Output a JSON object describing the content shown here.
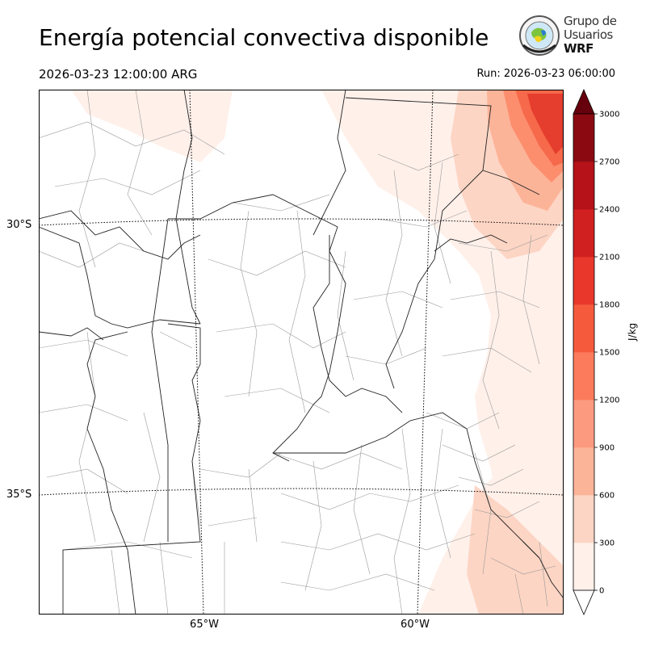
{
  "header": {
    "title": "Energía potencial convectiva disponible",
    "valid_time": "2026-03-23 12:00:00 ARG",
    "run_time": "Run: 2026-03-23 06:00:00"
  },
  "logo": {
    "line1": "Grupo de",
    "line2": "Usuarios",
    "line3": "WRF"
  },
  "map": {
    "lat_labels": [
      "30°S",
      "35°S"
    ],
    "lon_labels": [
      "65°W",
      "60°W"
    ],
    "field_colors": [
      "#fff0ea",
      "#fdd5c4",
      "#fcb499",
      "#fc8e6e",
      "#f6694a",
      "#e53d2e",
      "#c81c1f",
      "#a50f15",
      "#780511"
    ]
  },
  "colorbar": {
    "unit": "J/kg",
    "ticks": [
      "0",
      "300",
      "600",
      "900",
      "1200",
      "1500",
      "1800",
      "2100",
      "2400",
      "2700",
      "3000"
    ],
    "colors": [
      "#fff0ea",
      "#fdd5c4",
      "#fcb499",
      "#fc9a7f",
      "#fb7b5c",
      "#f55a3d",
      "#e9382b",
      "#d0201f",
      "#b51319",
      "#8b0a12"
    ],
    "over_color": "#67000d",
    "under_color": "#ffffff"
  }
}
